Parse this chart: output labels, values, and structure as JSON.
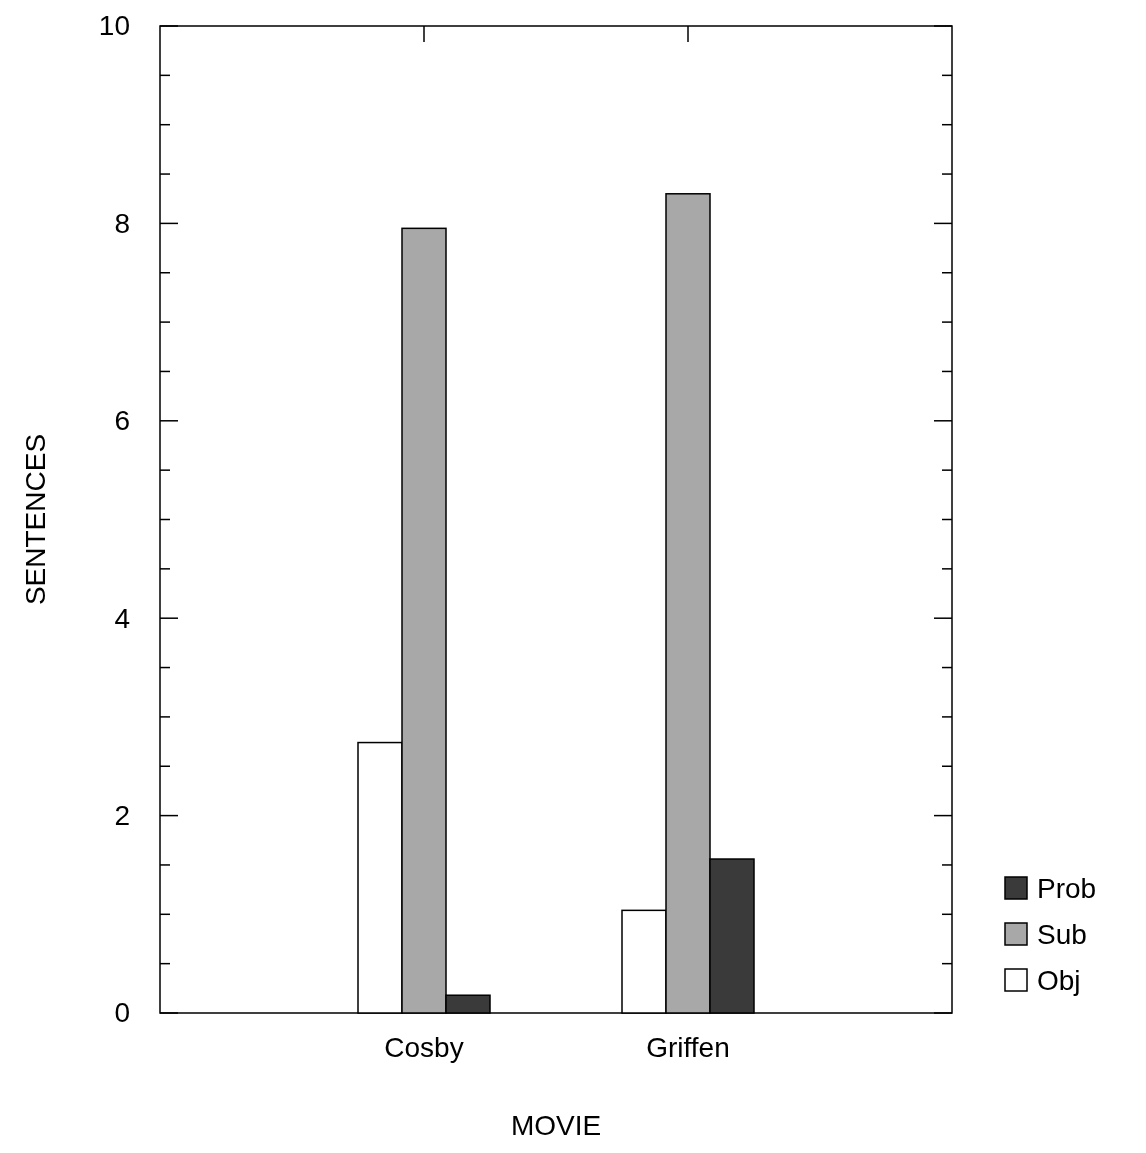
{
  "chart_data": {
    "type": "bar",
    "xlabel": "MOVIE",
    "ylabel": "SENTENCES",
    "categories": [
      "Cosby",
      "Griffen"
    ],
    "series": [
      {
        "name": "Obj",
        "color": "#ffffff",
        "values": [
          2.74,
          1.04
        ]
      },
      {
        "name": "Sub",
        "color": "#a8a8a8",
        "values": [
          7.95,
          8.3
        ]
      },
      {
        "name": "Prob",
        "color": "#3a3a3a",
        "values": [
          0.18,
          1.56
        ]
      }
    ],
    "ylim": [
      0,
      10
    ],
    "yticks": [
      0,
      {
        "value": 0.5,
        "label": null
      },
      {
        "value": 1,
        "label": null
      },
      {
        "value": 1.5,
        "label": null
      },
      2,
      {
        "value": 2.5,
        "label": null
      },
      {
        "value": 3,
        "label": null
      },
      {
        "value": 3.5,
        "label": null
      },
      4,
      {
        "value": 4.5,
        "label": null
      },
      {
        "value": 5,
        "label": null
      },
      {
        "value": 5.5,
        "label": null
      },
      6,
      {
        "value": 6.5,
        "label": null
      },
      {
        "value": 7,
        "label": null
      },
      {
        "value": 7.5,
        "label": null
      },
      8,
      {
        "value": 8.5,
        "label": null
      },
      {
        "value": 9,
        "label": null
      },
      {
        "value": 9.5,
        "label": null
      },
      10
    ],
    "legend": "right",
    "grid": false
  }
}
